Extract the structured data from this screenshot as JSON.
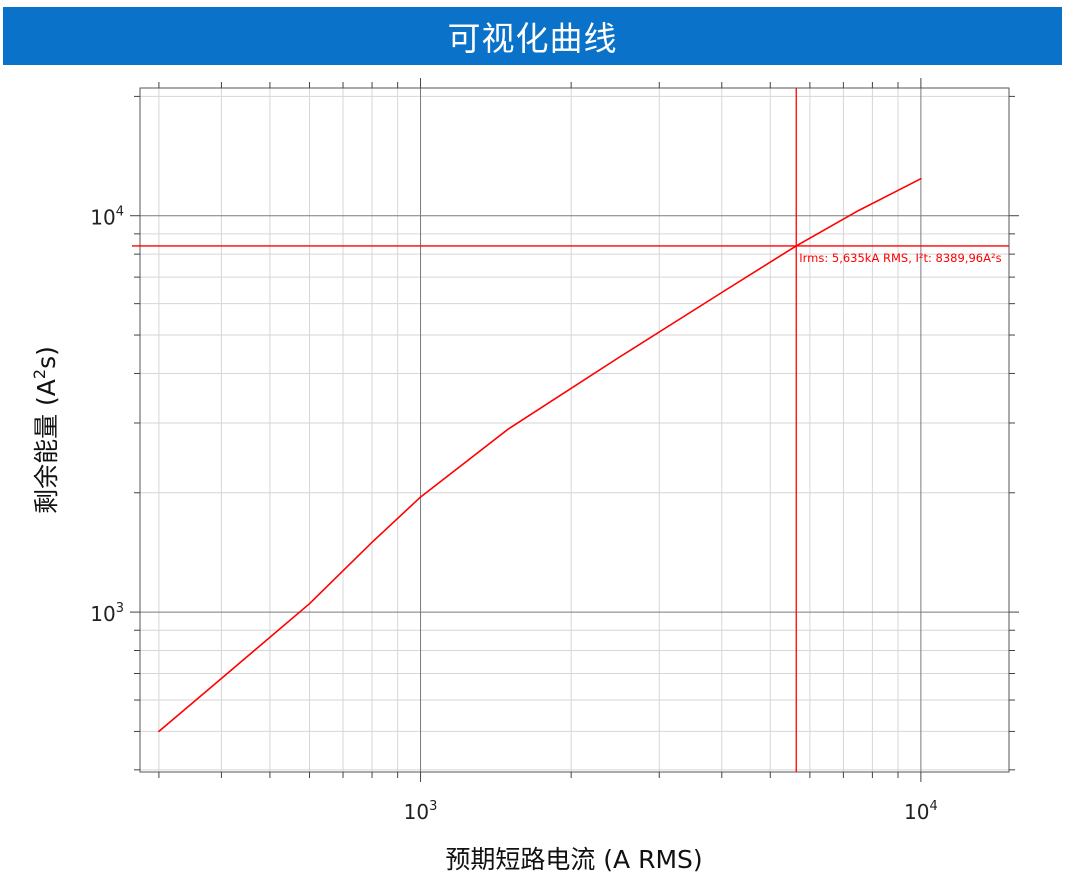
{
  "header": {
    "title": "可视化曲线"
  },
  "chart_data": {
    "type": "line",
    "scale": "log-log",
    "grid": true,
    "xlabel": "预期短路电流 (A RMS)",
    "ylabel_text": "剩余能量 (A",
    "ylabel_sup": "2",
    "ylabel_tail": "s)",
    "xlim": [
      275,
      15000
    ],
    "ylim": [
      395,
      21000
    ],
    "x_ticks": [
      {
        "value": 1000,
        "base": "10",
        "exp": "3"
      },
      {
        "value": 10000,
        "base": "10",
        "exp": "4"
      }
    ],
    "y_ticks": [
      {
        "value": 1000,
        "base": "10",
        "exp": "3"
      },
      {
        "value": 10000,
        "base": "10",
        "exp": "4"
      }
    ],
    "series": [
      {
        "color": "#ff0000",
        "x": [
          300,
          400,
          600,
          800,
          1000,
          1500,
          2500,
          4000,
          5635,
          7500,
          10000
        ],
        "y": [
          500,
          680,
          1050,
          1500,
          1950,
          2900,
          4400,
          6400,
          8390,
          10300,
          12400
        ]
      }
    ],
    "crosshair": {
      "color": "#ff0000",
      "x": 5635,
      "y": 8390,
      "label": "Irms: 5,635kA RMS, I²t: 8389,96A²s"
    }
  }
}
